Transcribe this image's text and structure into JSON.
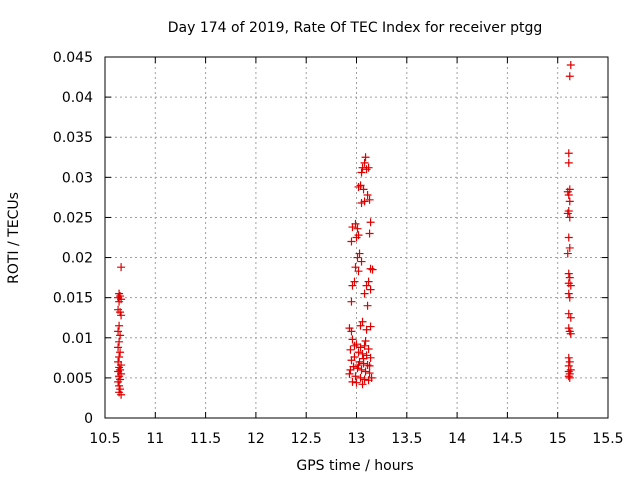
{
  "colors": {
    "marker": "#e00000",
    "grid": "#a0a0a0",
    "axis": "#000000"
  },
  "chart_data": {
    "type": "scatter",
    "title": "Day 174 of 2019, Rate Of TEC Index for receiver ptgg",
    "xlabel": "GPS time / hours",
    "ylabel": "ROTI / TECUs",
    "xlim": [
      10.5,
      15.5
    ],
    "ylim": [
      0,
      0.045
    ],
    "xticks": [
      10.5,
      11,
      11.5,
      12,
      12.5,
      13,
      13.5,
      14,
      14.5,
      15,
      15.5
    ],
    "xtick_labels": [
      "10.5",
      "11",
      "11.5",
      "12",
      "12.5",
      "13",
      "13.5",
      "14",
      "14.5",
      "15",
      "15.5"
    ],
    "yticks": [
      0,
      0.005,
      0.01,
      0.015,
      0.02,
      0.025,
      0.03,
      0.035,
      0.04,
      0.045
    ],
    "ytick_labels": [
      "0",
      "0.005",
      "0.01",
      "0.015",
      "0.02",
      "0.025",
      "0.03",
      "0.035",
      "0.04",
      "0.045"
    ],
    "grid": true,
    "marker": "+",
    "series": [
      {
        "name": "ROTI",
        "points": [
          [
            10.66,
            0.0188
          ],
          [
            10.64,
            0.0155
          ],
          [
            10.65,
            0.0152
          ],
          [
            10.63,
            0.015
          ],
          [
            10.66,
            0.0148
          ],
          [
            10.64,
            0.0145
          ],
          [
            10.63,
            0.0135
          ],
          [
            10.65,
            0.0132
          ],
          [
            10.66,
            0.0128
          ],
          [
            10.64,
            0.0115
          ],
          [
            10.63,
            0.0108
          ],
          [
            10.65,
            0.0103
          ],
          [
            10.64,
            0.0095
          ],
          [
            10.63,
            0.0088
          ],
          [
            10.65,
            0.0082
          ],
          [
            10.64,
            0.0076
          ],
          [
            10.63,
            0.007
          ],
          [
            10.66,
            0.0066
          ],
          [
            10.64,
            0.0063
          ],
          [
            10.65,
            0.006
          ],
          [
            10.63,
            0.0058
          ],
          [
            10.66,
            0.0055
          ],
          [
            10.64,
            0.0052
          ],
          [
            10.65,
            0.0048
          ],
          [
            10.63,
            0.0045
          ],
          [
            10.64,
            0.004
          ],
          [
            10.65,
            0.0036
          ],
          [
            10.64,
            0.0032
          ],
          [
            10.66,
            0.0029
          ],
          [
            13.09,
            0.0325
          ],
          [
            13.08,
            0.0318
          ],
          [
            13.06,
            0.0312
          ],
          [
            13.1,
            0.031
          ],
          [
            13.05,
            0.0306
          ],
          [
            13.12,
            0.0312
          ],
          [
            13.04,
            0.029
          ],
          [
            13.02,
            0.0288
          ],
          [
            13.07,
            0.0285
          ],
          [
            13.11,
            0.0278
          ],
          [
            13.13,
            0.0272
          ],
          [
            13.08,
            0.027
          ],
          [
            13.05,
            0.0268
          ],
          [
            12.99,
            0.0242
          ],
          [
            12.96,
            0.0238
          ],
          [
            13.01,
            0.0236
          ],
          [
            13.14,
            0.0244
          ],
          [
            13.02,
            0.0228
          ],
          [
            13.0,
            0.0225
          ],
          [
            12.95,
            0.022
          ],
          [
            13.13,
            0.023
          ],
          [
            13.03,
            0.0205
          ],
          [
            13.01,
            0.02
          ],
          [
            13.05,
            0.0195
          ],
          [
            12.99,
            0.0188
          ],
          [
            13.02,
            0.0183
          ],
          [
            13.14,
            0.0186
          ],
          [
            13.16,
            0.0185
          ],
          [
            12.98,
            0.017
          ],
          [
            12.96,
            0.0165
          ],
          [
            13.12,
            0.017
          ],
          [
            13.1,
            0.0165
          ],
          [
            13.14,
            0.016
          ],
          [
            13.08,
            0.0155
          ],
          [
            12.95,
            0.0145
          ],
          [
            13.11,
            0.014
          ],
          [
            13.06,
            0.012
          ],
          [
            13.04,
            0.0115
          ],
          [
            12.93,
            0.0112
          ],
          [
            12.95,
            0.0108
          ],
          [
            13.1,
            0.011
          ],
          [
            13.14,
            0.0114
          ],
          [
            12.96,
            0.0098
          ],
          [
            13.0,
            0.0092
          ],
          [
            13.04,
            0.0088
          ],
          [
            13.08,
            0.009
          ],
          [
            13.12,
            0.0086
          ],
          [
            12.94,
            0.0085
          ],
          [
            13.02,
            0.0082
          ],
          [
            13.06,
            0.008
          ],
          [
            13.1,
            0.0078
          ],
          [
            12.98,
            0.0076
          ],
          [
            13.14,
            0.0075
          ],
          [
            12.95,
            0.0072
          ],
          [
            13.03,
            0.007
          ],
          [
            13.07,
            0.0068
          ],
          [
            13.11,
            0.0066
          ],
          [
            12.97,
            0.0064
          ],
          [
            13.01,
            0.0062
          ],
          [
            13.05,
            0.006
          ],
          [
            13.09,
            0.0058
          ],
          [
            13.13,
            0.0056
          ],
          [
            12.93,
            0.0055
          ],
          [
            12.99,
            0.0052
          ],
          [
            13.04,
            0.005
          ],
          [
            13.08,
            0.0048
          ],
          [
            13.12,
            0.0047
          ],
          [
            12.96,
            0.0045
          ],
          [
            13.0,
            0.0044
          ],
          [
            13.06,
            0.0042
          ],
          [
            13.15,
            0.005
          ],
          [
            13.02,
            0.0066
          ],
          [
            12.94,
            0.006
          ],
          [
            13.13,
            0.0065
          ],
          [
            13.07,
            0.0074
          ],
          [
            12.98,
            0.009
          ],
          [
            13.09,
            0.0096
          ],
          [
            15.13,
            0.044
          ],
          [
            15.12,
            0.0426
          ],
          [
            15.11,
            0.033
          ],
          [
            15.11,
            0.0318
          ],
          [
            15.12,
            0.0285
          ],
          [
            15.1,
            0.0282
          ],
          [
            15.11,
            0.0278
          ],
          [
            15.12,
            0.027
          ],
          [
            15.11,
            0.0258
          ],
          [
            15.1,
            0.0255
          ],
          [
            15.12,
            0.025
          ],
          [
            15.11,
            0.0225
          ],
          [
            15.12,
            0.0212
          ],
          [
            15.1,
            0.0205
          ],
          [
            15.11,
            0.018
          ],
          [
            15.12,
            0.0175
          ],
          [
            15.11,
            0.0168
          ],
          [
            15.13,
            0.0165
          ],
          [
            15.11,
            0.0155
          ],
          [
            15.12,
            0.015
          ],
          [
            15.11,
            0.013
          ],
          [
            15.13,
            0.0125
          ],
          [
            15.11,
            0.0112
          ],
          [
            15.12,
            0.0108
          ],
          [
            15.13,
            0.0105
          ],
          [
            15.11,
            0.0075
          ],
          [
            15.12,
            0.007
          ],
          [
            15.11,
            0.0065
          ],
          [
            15.13,
            0.006
          ],
          [
            15.11,
            0.0058
          ],
          [
            15.12,
            0.0055
          ],
          [
            15.11,
            0.0052
          ],
          [
            15.12,
            0.005
          ]
        ]
      }
    ]
  }
}
